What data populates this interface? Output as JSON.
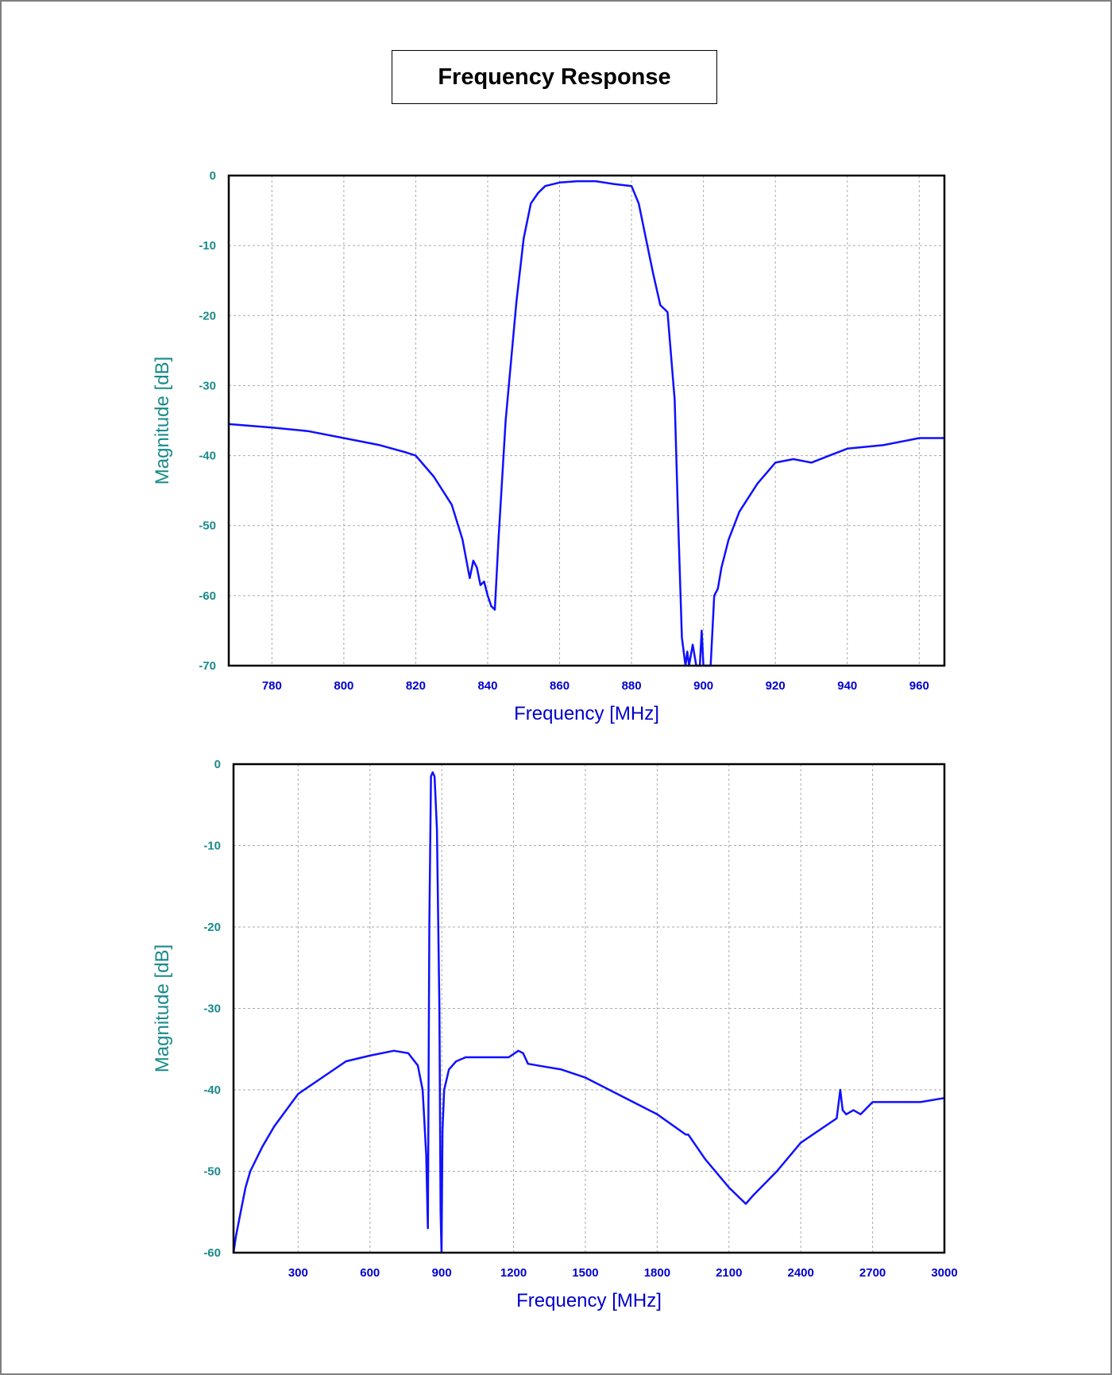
{
  "page": {
    "title": "Frequency Response"
  },
  "colors": {
    "trace": "#1010ff",
    "ticks_x": "#0000cc",
    "ticks_y": "#1a8a8a",
    "xlabel": "#0000cc",
    "ylabel": "#1a8a8a",
    "grid": "#aaaaaa",
    "frame": "#000000"
  },
  "chart_data": [
    {
      "type": "line",
      "xlabel": "Frequency [MHz]",
      "ylabel": "Magnitude [dB]",
      "xlim": [
        768,
        967
      ],
      "ylim": [
        -70,
        0
      ],
      "xticks": [
        780,
        800,
        820,
        840,
        860,
        880,
        900,
        920,
        940,
        960
      ],
      "yticks": [
        0,
        -10,
        -20,
        -30,
        -40,
        -50,
        -60,
        -70
      ],
      "grid": true,
      "series": [
        {
          "x": [
            768,
            780,
            790,
            800,
            810,
            817,
            820,
            825,
            830,
            833,
            835,
            836,
            837,
            838,
            839,
            840,
            841,
            842,
            843,
            845,
            848,
            850,
            852,
            854,
            856,
            860,
            865,
            870,
            875,
            880,
            882,
            884,
            886,
            888,
            890,
            892,
            893,
            894,
            895,
            895.5,
            896,
            897,
            898,
            899,
            899.5,
            900,
            901,
            902,
            903,
            904,
            905,
            907,
            910,
            915,
            920,
            925,
            930,
            935,
            940,
            950,
            960,
            967
          ],
          "y": [
            -35.5,
            -36,
            -36.5,
            -37.5,
            -38.5,
            -39.5,
            -40,
            -43,
            -47,
            -52,
            -57.5,
            -55,
            -56,
            -58.5,
            -58,
            -60,
            -61.5,
            -62,
            -52,
            -35,
            -18,
            -9,
            -4,
            -2.5,
            -1.5,
            -1,
            -0.8,
            -0.8,
            -1.2,
            -1.5,
            -4,
            -9,
            -14,
            -18.5,
            -19.5,
            -32,
            -50,
            -66,
            -70,
            -68,
            -70,
            -67,
            -70,
            -70,
            -65,
            -70,
            -70,
            -70,
            -60,
            -59,
            -56,
            -52,
            -48,
            -44,
            -41,
            -40.5,
            -41,
            -40,
            -39,
            -38.5,
            -37.5,
            -37.5
          ]
        }
      ]
    },
    {
      "type": "line",
      "xlabel": "Frequency [MHz]",
      "ylabel": "Magnitude [dB]",
      "xlim": [
        30,
        3000
      ],
      "ylim": [
        -60,
        0
      ],
      "xticks": [
        300,
        600,
        900,
        1200,
        1500,
        1800,
        2100,
        2400,
        2700,
        3000
      ],
      "yticks": [
        0,
        -10,
        -20,
        -30,
        -40,
        -50,
        -60
      ],
      "grid": true,
      "series": [
        {
          "x": [
            30,
            40,
            60,
            80,
            100,
            150,
            200,
            300,
            400,
            500,
            600,
            700,
            760,
            800,
            820,
            835,
            842,
            848,
            855,
            862,
            870,
            880,
            890,
            895,
            899,
            903,
            910,
            930,
            960,
            1000,
            1100,
            1180,
            1220,
            1240,
            1260,
            1300,
            1400,
            1500,
            1600,
            1700,
            1800,
            1920,
            1930,
            2000,
            2100,
            2170,
            2200,
            2300,
            2400,
            2500,
            2550,
            2565,
            2575,
            2590,
            2620,
            2650,
            2700,
            2800,
            2900,
            3000
          ],
          "y": [
            -60,
            -58,
            -55,
            -52,
            -50,
            -47,
            -44.5,
            -40.5,
            -38.5,
            -36.5,
            -35.8,
            -35.2,
            -35.5,
            -37,
            -40,
            -48,
            -57,
            -20,
            -1.5,
            -1,
            -1.5,
            -8,
            -30,
            -55,
            -60,
            -45,
            -40,
            -37.5,
            -36.5,
            -36,
            -36,
            -36,
            -35.2,
            -35.5,
            -36.8,
            -37,
            -37.5,
            -38.5,
            -40,
            -41.5,
            -43,
            -45.5,
            -45.5,
            -48.5,
            -52,
            -54,
            -53,
            -50,
            -46.5,
            -44.5,
            -43.5,
            -40,
            -42.5,
            -43,
            -42.5,
            -43,
            -41.5,
            -41.5,
            -41.5,
            -41
          ]
        }
      ]
    }
  ]
}
